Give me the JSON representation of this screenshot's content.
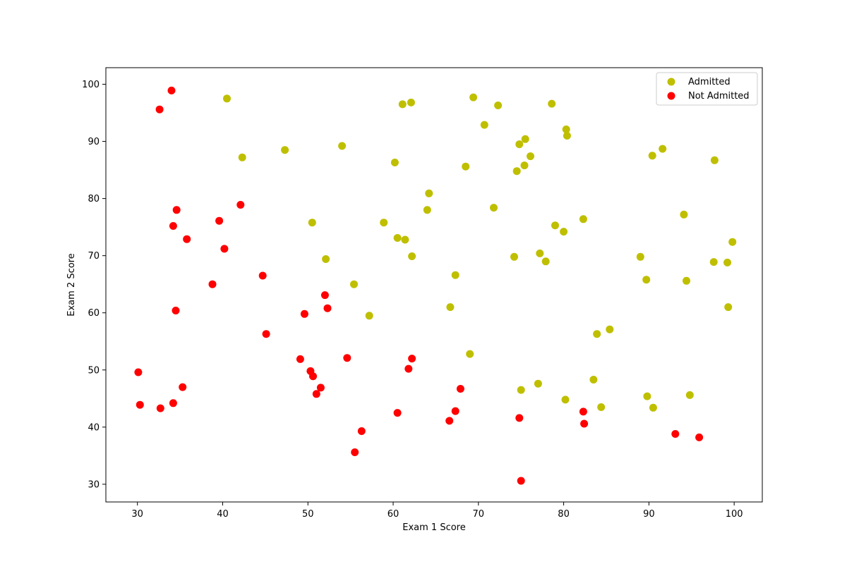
{
  "chart_data": {
    "type": "scatter",
    "title": "",
    "xlabel": "Exam 1 Score",
    "ylabel": "Exam 2 Score",
    "xlim": [
      26.3,
      103.3
    ],
    "ylim": [
      26.9,
      102.9
    ],
    "xticks": [
      30,
      40,
      50,
      60,
      70,
      80,
      90,
      100
    ],
    "yticks": [
      30,
      40,
      50,
      60,
      70,
      80,
      90,
      100
    ],
    "grid": false,
    "legend_position": "top-right",
    "series": [
      {
        "name": "Admitted",
        "color": "#bfbf00",
        "points": [
          [
            40.5,
            97.5
          ],
          [
            42.3,
            87.2
          ],
          [
            47.3,
            88.5
          ],
          [
            50.5,
            75.8
          ],
          [
            52.1,
            69.4
          ],
          [
            54.0,
            89.2
          ],
          [
            55.4,
            65.0
          ],
          [
            57.2,
            59.5
          ],
          [
            58.9,
            75.8
          ],
          [
            60.2,
            86.3
          ],
          [
            60.5,
            73.1
          ],
          [
            61.1,
            96.5
          ],
          [
            61.4,
            72.8
          ],
          [
            62.1,
            96.8
          ],
          [
            62.2,
            69.9
          ],
          [
            64.0,
            78.0
          ],
          [
            64.2,
            80.9
          ],
          [
            66.7,
            61.0
          ],
          [
            67.3,
            66.6
          ],
          [
            68.5,
            85.6
          ],
          [
            69.0,
            52.8
          ],
          [
            69.4,
            97.7
          ],
          [
            70.7,
            92.9
          ],
          [
            71.8,
            78.4
          ],
          [
            72.3,
            96.3
          ],
          [
            74.2,
            69.8
          ],
          [
            74.5,
            84.8
          ],
          [
            74.8,
            89.5
          ],
          [
            75.0,
            46.5
          ],
          [
            75.4,
            85.8
          ],
          [
            75.5,
            90.4
          ],
          [
            76.1,
            87.4
          ],
          [
            77.0,
            47.6
          ],
          [
            77.2,
            70.4
          ],
          [
            77.9,
            69.0
          ],
          [
            78.6,
            96.6
          ],
          [
            79.0,
            75.3
          ],
          [
            80.0,
            74.2
          ],
          [
            80.2,
            44.8
          ],
          [
            80.3,
            92.1
          ],
          [
            80.4,
            91.0
          ],
          [
            82.3,
            76.4
          ],
          [
            83.5,
            48.3
          ],
          [
            83.9,
            56.3
          ],
          [
            84.4,
            43.5
          ],
          [
            85.4,
            57.1
          ],
          [
            89.0,
            69.8
          ],
          [
            89.7,
            65.8
          ],
          [
            89.8,
            45.4
          ],
          [
            90.4,
            87.5
          ],
          [
            90.5,
            43.4
          ],
          [
            91.6,
            88.7
          ],
          [
            94.1,
            77.2
          ],
          [
            94.4,
            65.6
          ],
          [
            94.8,
            45.6
          ],
          [
            97.6,
            68.9
          ],
          [
            97.7,
            86.7
          ],
          [
            99.2,
            68.8
          ],
          [
            99.3,
            61.0
          ],
          [
            99.8,
            72.4
          ]
        ]
      },
      {
        "name": "Not Admitted",
        "color": "#ff0000",
        "points": [
          [
            30.1,
            49.6
          ],
          [
            30.3,
            43.9
          ],
          [
            32.6,
            95.6
          ],
          [
            32.7,
            43.3
          ],
          [
            34.0,
            98.9
          ],
          [
            34.2,
            75.2
          ],
          [
            34.2,
            44.2
          ],
          [
            34.5,
            60.4
          ],
          [
            34.6,
            78.0
          ],
          [
            35.3,
            47.0
          ],
          [
            35.8,
            72.9
          ],
          [
            38.8,
            65.0
          ],
          [
            39.6,
            76.1
          ],
          [
            40.2,
            71.2
          ],
          [
            42.1,
            78.9
          ],
          [
            44.7,
            66.5
          ],
          [
            45.1,
            56.3
          ],
          [
            49.1,
            51.9
          ],
          [
            49.6,
            59.8
          ],
          [
            50.3,
            49.8
          ],
          [
            50.6,
            48.9
          ],
          [
            51.0,
            45.8
          ],
          [
            51.5,
            46.9
          ],
          [
            52.0,
            63.1
          ],
          [
            52.3,
            60.8
          ],
          [
            54.6,
            52.1
          ],
          [
            55.5,
            35.6
          ],
          [
            56.3,
            39.3
          ],
          [
            60.5,
            42.5
          ],
          [
            61.8,
            50.2
          ],
          [
            62.2,
            52.0
          ],
          [
            66.6,
            41.1
          ],
          [
            67.3,
            42.8
          ],
          [
            67.9,
            46.7
          ],
          [
            74.8,
            41.6
          ],
          [
            75.0,
            30.6
          ],
          [
            82.3,
            42.7
          ],
          [
            82.4,
            40.6
          ],
          [
            93.1,
            38.8
          ],
          [
            95.9,
            38.2
          ]
        ]
      }
    ]
  }
}
